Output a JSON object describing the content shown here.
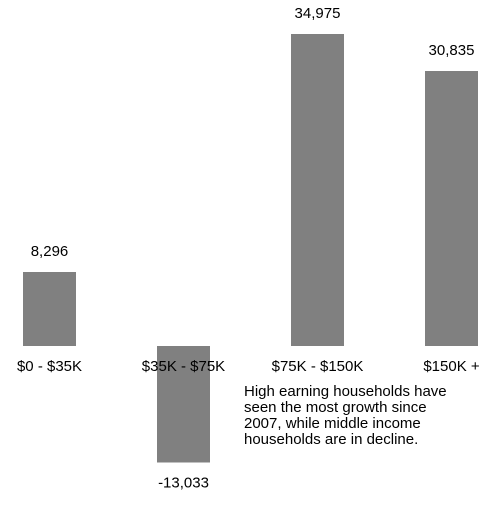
{
  "chart_data": {
    "type": "bar",
    "categories": [
      "$0 - $35K",
      "$35K - $75K",
      "$75K - $150K",
      "$150K +"
    ],
    "values": [
      8296,
      -13033,
      34975,
      30835
    ],
    "value_labels": [
      "8,296",
      "-13,033",
      "34,975",
      "30,835"
    ],
    "title": "",
    "xlabel": "",
    "ylabel": "",
    "ylim": [
      -13033,
      34975
    ],
    "grid": false,
    "legend": "none",
    "annotation": "High earning households have\nseen the most growth  since\n2007, while middle income\nhouseholds are in decline."
  },
  "colors": {
    "bar": "#808080",
    "text": "#000000",
    "background": "#ffffff"
  }
}
